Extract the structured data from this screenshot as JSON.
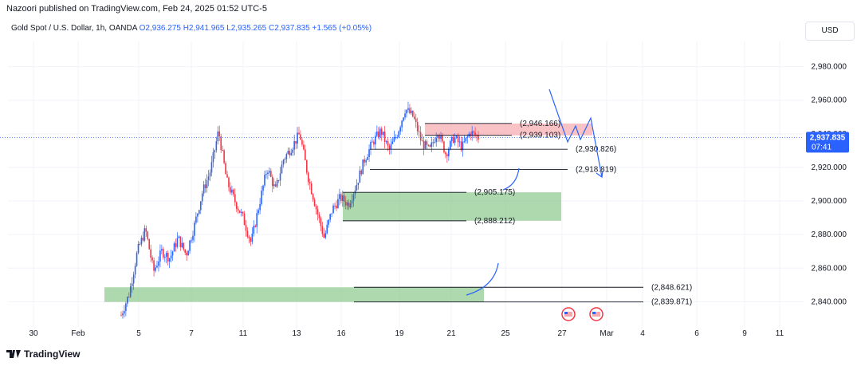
{
  "header": {
    "publisher_line": "Nazoori published on TradingView.com, Feb 24, 2025 01:52 UTC-5"
  },
  "symbol": {
    "name": "Gold Spot / U.S. Dollar, 1h, OANDA",
    "open": "O2,936.275",
    "high": "H2,941.965",
    "low": "L2,935.265",
    "close": "C2,937.835",
    "change": "+1.565 (+0.05%)"
  },
  "currency": "USD",
  "price_badge": {
    "price": "2,937.835",
    "countdown": "07:41"
  },
  "footer": {
    "logo_text": "TradingView"
  },
  "colors": {
    "up": "#2962ff",
    "down": "#f23645",
    "zone_green": "#8bc78b",
    "zone_red": "#f7a8ad",
    "badge": "#2962ff"
  },
  "chart_data": {
    "type": "candlestick",
    "ylim": [
      2825,
      2995
    ],
    "y_ticks": [
      "2,980.000",
      "2,960.000",
      "2,940.000",
      "2,920.000",
      "2,900.000",
      "2,880.000",
      "2,860.000",
      "2,840.000"
    ],
    "x_ticks": [
      "30",
      "Feb",
      "5",
      "7",
      "11",
      "13",
      "16",
      "19",
      "21",
      "25",
      "27",
      "Mar",
      "4",
      "6",
      "9",
      "11"
    ],
    "current_price": 2937.835,
    "levels": [
      {
        "label": "(2,946.166)",
        "value": 2946.166
      },
      {
        "label": "(2,939.103)",
        "value": 2939.103
      },
      {
        "label": "(2,930.826)",
        "value": 2930.826
      },
      {
        "label": "(2,918.819)",
        "value": 2918.819
      },
      {
        "label": "(2,905.175)",
        "value": 2905.175
      },
      {
        "label": "(2,888.212)",
        "value": 2888.212
      },
      {
        "label": "(2,848.621)",
        "value": 2848.621
      },
      {
        "label": "(2,839.871)",
        "value": 2839.871
      }
    ],
    "zones": [
      {
        "kind": "supply",
        "top": 2946.166,
        "bottom": 2939.103
      },
      {
        "kind": "demand",
        "top": 2905.175,
        "bottom": 2888.212
      },
      {
        "kind": "demand",
        "top": 2848.621,
        "bottom": 2839.871
      }
    ],
    "price_path": [
      2832,
      2845,
      2870,
      2883,
      2858,
      2870,
      2866,
      2878,
      2868,
      2885,
      2905,
      2918,
      2942,
      2912,
      2900,
      2890,
      2875,
      2898,
      2920,
      2906,
      2925,
      2932,
      2940,
      2915,
      2896,
      2878,
      2895,
      2902,
      2898,
      2910,
      2925,
      2935,
      2942,
      2930,
      2940,
      2955,
      2950,
      2935,
      2930,
      2942,
      2928,
      2938,
      2932,
      2941,
      2937.835
    ]
  }
}
